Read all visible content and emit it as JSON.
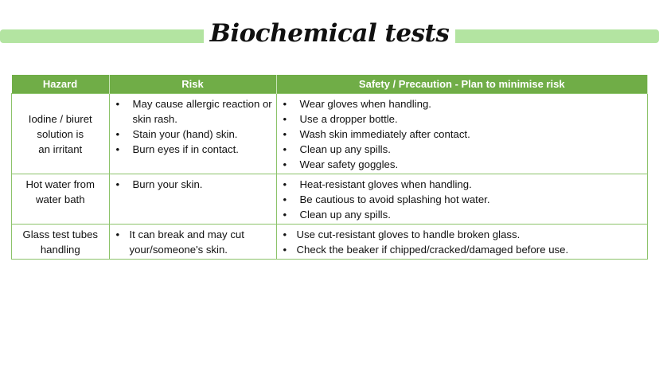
{
  "title": "Biochemical tests",
  "colors": {
    "header": "#70ad47",
    "bars": "#b3e4a1"
  },
  "table": {
    "headers": [
      "Hazard",
      "Risk",
      "Safety / Precaution - Plan to minimise risk"
    ],
    "rows": [
      {
        "hazard": [
          "Iodine / biuret",
          "solution is",
          "an irritant"
        ],
        "risk": [
          "May cause allergic reaction or skin rash.",
          "Stain your (hand) skin.",
          "Burn eyes if in contact."
        ],
        "safety": [
          "Wear gloves when handling.",
          "Use a dropper bottle.",
          "Wash skin immediately after contact.",
          "Clean up any spills.",
          "Wear safety goggles."
        ]
      },
      {
        "hazard": [
          "Hot water from",
          "water bath"
        ],
        "risk": [
          "Burn your skin."
        ],
        "safety": [
          "Heat-resistant gloves when handling.",
          "Be cautious to avoid splashing hot water.",
          "Clean up any spills."
        ]
      },
      {
        "hazard": [
          "Glass test tubes",
          "handling"
        ],
        "risk": [
          "It can break and may cut your/someone's skin."
        ],
        "safety": [
          "Use cut-resistant gloves to handle broken glass.",
          "Check the beaker if chipped/cracked/damaged before use."
        ]
      }
    ]
  }
}
